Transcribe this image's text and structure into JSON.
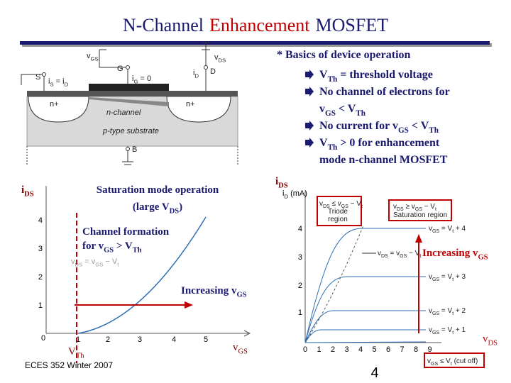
{
  "title": [
    "N-Channel",
    "Enhancement",
    "MOSFET"
  ],
  "device_diagram": {
    "source": "S",
    "gate": "G",
    "drain": "D",
    "body": "B",
    "source_region": "n+",
    "drain_region": "n+",
    "channel": "n-channel",
    "substrate": "p-type substrate",
    "vgs": [
      "v",
      "GS"
    ],
    "vds": [
      "v",
      "DS"
    ],
    "is_eq": [
      "i",
      "S",
      " = i",
      "D"
    ],
    "ig_eq": [
      "i",
      "G",
      " = 0"
    ],
    "id": [
      "i",
      "D"
    ]
  },
  "basics": {
    "heading": "*  Basics  of  device  operation",
    "bullets": [
      [
        [
          "V",
          "Th",
          "  =  threshold  voltage"
        ]
      ],
      [
        [
          "No  channel  of  electrons  for"
        ],
        [
          "v",
          "GS",
          " < V",
          "Th"
        ]
      ],
      [
        [
          "No  current  for  v",
          "GS",
          " < V",
          "Th"
        ]
      ],
      [
        [
          "V",
          "Th",
          " > 0  for  enhancement"
        ],
        [
          "mode  n-channel  MOSFET"
        ]
      ]
    ]
  },
  "left_graph": {
    "y_label": [
      "i",
      "DS"
    ],
    "yticks": [
      "1",
      "2",
      "3",
      "4"
    ],
    "origin": "0",
    "xticks": [
      "1",
      "2",
      "3",
      "4",
      "5"
    ],
    "vth_label": [
      "V",
      "Th"
    ],
    "x_label": [
      "v",
      "GS"
    ],
    "saturation": [
      [
        "Saturation  mode  operation"
      ],
      [
        "(large  V",
        "DS",
        ")"
      ]
    ],
    "channel": [
      [
        "Channel formation"
      ],
      [
        "for  v",
        "GS",
        " > V",
        "Th"
      ]
    ],
    "inner": [
      "v",
      "DS",
      " =  v",
      "GS",
      " − V",
      "t"
    ],
    "increasing": [
      "Increasing  v",
      "GS"
    ]
  },
  "right_graph": {
    "y_label": [
      "i",
      "DS"
    ],
    "axis_label": [
      "i",
      "D",
      " (mA)"
    ],
    "yticks": [
      "1",
      "2",
      "3",
      "4"
    ],
    "xticks": [
      "0",
      "1",
      "2",
      "3",
      "4",
      "5",
      "6",
      "7",
      "8",
      "9"
    ],
    "triode": [
      [
        "v",
        "DS",
        " ≤ v",
        "GS",
        " − V",
        "t"
      ],
      [
        "Triode"
      ],
      [
        "region"
      ]
    ],
    "saturation": [
      [
        "v",
        "DS",
        " ≥ v",
        "GS",
        " − V",
        "t"
      ],
      [
        "Saturation region"
      ]
    ],
    "inner": [
      "v",
      "DS",
      " = v",
      "GS",
      " − V",
      "t"
    ],
    "curve_labels": [
      [
        "v",
        "GS",
        " = V",
        "t",
        " + 4"
      ],
      [
        "v",
        "GS",
        " = V",
        "t",
        " + 3"
      ],
      [
        "v",
        "GS",
        " = V",
        "t",
        " + 2"
      ],
      [
        "v",
        "GS",
        " = V",
        "t",
        " + 1"
      ]
    ],
    "cutoff": [
      "v",
      "GS",
      " ≤ V",
      "t",
      " (cut off)"
    ],
    "increasing": [
      "Increasing  v",
      "GS"
    ],
    "x_label": [
      "v",
      "DS"
    ]
  },
  "footer": "ECES 352  Winter 2007",
  "page_number": "4"
}
